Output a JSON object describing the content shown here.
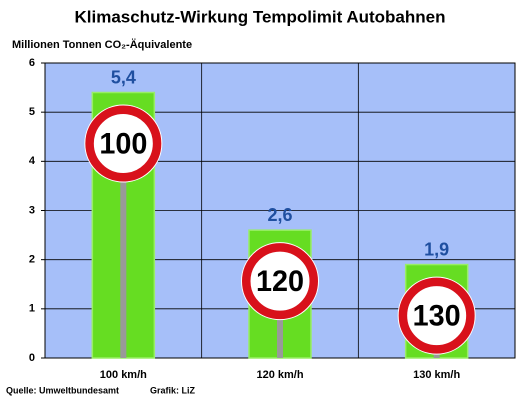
{
  "chart_data": {
    "type": "bar",
    "title": "Klimaschutz-Wirkung Tempolimit Autobahnen",
    "y_axis_label": "Millionen Tonnen CO₂-Äquivalente",
    "categories": [
      "100 km/h",
      "120 km/h",
      "130 km/h"
    ],
    "values": [
      5.4,
      2.6,
      1.9
    ],
    "value_labels": [
      "5,4",
      "2,6",
      "1,9"
    ],
    "sign_labels": [
      "100",
      "120",
      "130"
    ],
    "color": "#66dd22",
    "ylim": [
      0,
      6
    ],
    "yticks": [
      0,
      1,
      2,
      3,
      4,
      5,
      6
    ],
    "grid": true,
    "source": "Quelle: Umweltbundesamt",
    "credit": "Grafik: LiZ"
  }
}
